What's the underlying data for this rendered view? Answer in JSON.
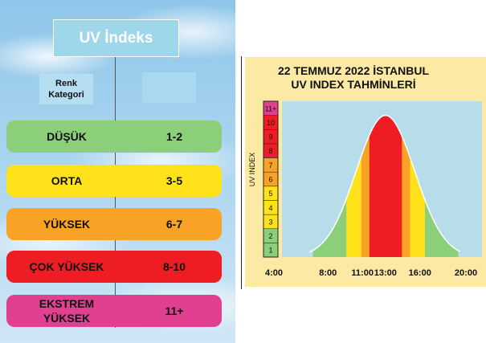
{
  "left_table": {
    "title": "UV İndeks",
    "header_category": "Renk Kategori",
    "rows": [
      {
        "label": "DÜŞÜK",
        "range": "1-2",
        "color": "#8ccf7b"
      },
      {
        "label": "ORTA",
        "range": "3-5",
        "color": "#ffe21a"
      },
      {
        "label": "YÜKSEK",
        "range": "6-7",
        "color": "#f8a325"
      },
      {
        "label": "ÇOK YÜKSEK",
        "range": "8-10",
        "color": "#ee1d24"
      },
      {
        "label": "EKSTREM\nYÜKSEK",
        "range": "11+",
        "color": "#e0408f"
      }
    ]
  },
  "chart_data": {
    "type": "area",
    "title": "22 TEMMUZ 2022 İSTANBUL\nUV INDEX TAHMİNLERİ",
    "ylabel": "UV INDEX",
    "x_tick_labels": [
      "4:00",
      "8:00",
      "11:00",
      "13:00",
      "16:00",
      "20:00"
    ],
    "x_ticks_hours": [
      4,
      8,
      11,
      13,
      16,
      20
    ],
    "xlim": [
      4,
      20
    ],
    "ylim": [
      0,
      11
    ],
    "peak": {
      "hour": 13,
      "uv": 10
    },
    "curve": {
      "mean_hour": 13,
      "sd_hours": 2.55,
      "peak_uv": 10
    },
    "scale_segments": [
      {
        "label": "1",
        "from": 0,
        "to": 1,
        "color": "#8ccf7b"
      },
      {
        "label": "2",
        "from": 1,
        "to": 2,
        "color": "#8ccf7b"
      },
      {
        "label": "3",
        "from": 2,
        "to": 3,
        "color": "#ffe21a"
      },
      {
        "label": "4",
        "from": 3,
        "to": 4,
        "color": "#ffe21a"
      },
      {
        "label": "5",
        "from": 4,
        "to": 5,
        "color": "#ffe21a"
      },
      {
        "label": "6",
        "from": 5,
        "to": 6,
        "color": "#f8a325"
      },
      {
        "label": "7",
        "from": 6,
        "to": 7,
        "color": "#f8a325"
      },
      {
        "label": "8",
        "from": 7,
        "to": 8,
        "color": "#ee1d24"
      },
      {
        "label": "9",
        "from": 8,
        "to": 9,
        "color": "#ee1d24"
      },
      {
        "label": "10",
        "from": 9,
        "to": 10,
        "color": "#ee1d24"
      },
      {
        "label": "11+",
        "from": 10,
        "to": 11,
        "color": "#e0408f"
      }
    ],
    "color_bands": [
      {
        "category": "DÜŞÜK",
        "color": "#8ccf7b",
        "x_ranges": [
          [
            6.7,
            9.6
          ],
          [
            16.4,
            19.3
          ]
        ]
      },
      {
        "category": "ORTA",
        "color": "#ffe21a",
        "x_ranges": [
          [
            9.6,
            10.9
          ],
          [
            15.1,
            16.4
          ]
        ]
      },
      {
        "category": "YÜKSEK",
        "color": "#f8a325",
        "x_ranges": [
          [
            10.9,
            11.6
          ],
          [
            14.4,
            15.1
          ]
        ]
      },
      {
        "category": "ÇOK YÜKSEK",
        "color": "#ee1d24",
        "x_ranges": [
          [
            11.6,
            14.4
          ]
        ]
      }
    ]
  }
}
